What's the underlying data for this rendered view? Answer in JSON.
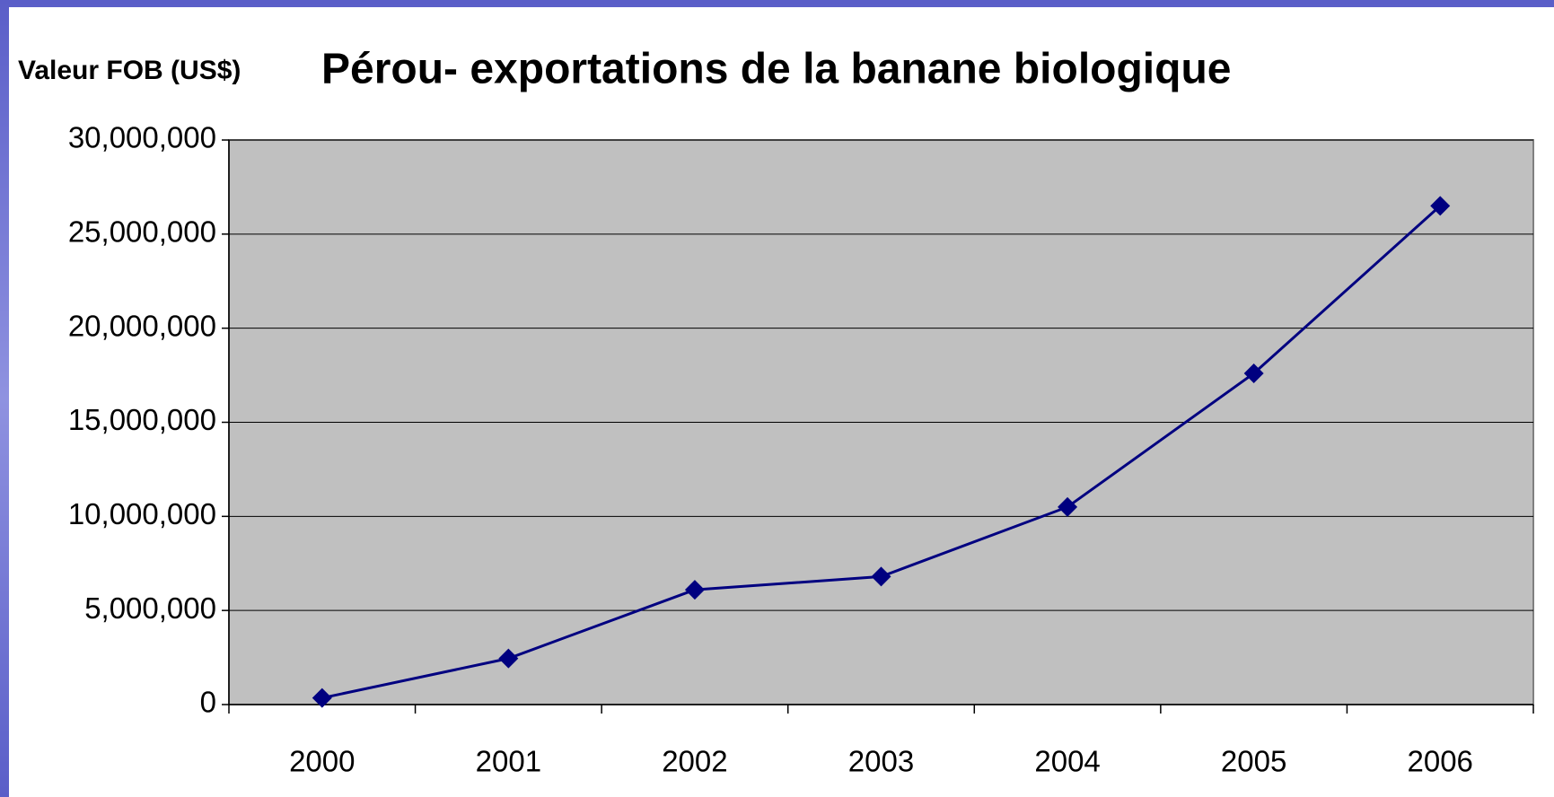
{
  "chart_data": {
    "type": "line",
    "title": "Pérou- exportations de la banane biologique",
    "y_label": "Valeur FOB (US$)",
    "categories": [
      "2000",
      "2001",
      "2002",
      "2003",
      "2004",
      "2005",
      "2006"
    ],
    "values": [
      350000,
      2450000,
      6100000,
      6800000,
      10500000,
      17600000,
      26500000
    ],
    "color": "#000080",
    "plot_background": "#c0c0c0",
    "ylim": [
      0,
      30000000
    ],
    "yticks": [
      0,
      {
        "value": 5000000,
        "label": "5,000,000"
      },
      {
        "value": 10000000,
        "label": "10,000,000"
      },
      {
        "value": 15000000,
        "label": "15,000,000"
      },
      {
        "value": 20000000,
        "label": "20,000,000"
      },
      {
        "value": 25000000,
        "label": "25,000,000"
      },
      {
        "value": 30000000,
        "label": "30,000,000"
      }
    ],
    "grid": true
  }
}
